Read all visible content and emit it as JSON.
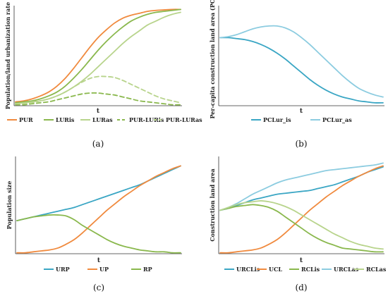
{
  "colors": {
    "orange": "#f08a3e",
    "green": "#8ab84d",
    "lightgreen": "#b8d48c",
    "blue": "#3aa6c4",
    "lightblue": "#8ccce0"
  },
  "chart_data": [
    {
      "type": "line",
      "panel_caption": "(a)",
      "xlabel": "t",
      "ylabel": "Population/land urbanization rate",
      "x": [
        0,
        1,
        2,
        3,
        4,
        5,
        6,
        7,
        8,
        9,
        10,
        11,
        12,
        13,
        14,
        15,
        16,
        17,
        18,
        19,
        20
      ],
      "ylim": [
        0,
        1
      ],
      "legend_position": "bottom",
      "series": [
        {
          "name": "PUR",
          "color": "#f08a3e",
          "dash": false,
          "values": [
            0.04,
            0.05,
            0.07,
            0.1,
            0.14,
            0.2,
            0.28,
            0.38,
            0.49,
            0.6,
            0.7,
            0.78,
            0.85,
            0.9,
            0.93,
            0.95,
            0.97,
            0.98,
            0.985,
            0.99,
            0.99
          ]
        },
        {
          "name": "LURis",
          "color": "#8ab84d",
          "dash": false,
          "values": [
            0.03,
            0.04,
            0.05,
            0.07,
            0.1,
            0.14,
            0.2,
            0.28,
            0.37,
            0.47,
            0.57,
            0.66,
            0.74,
            0.81,
            0.87,
            0.91,
            0.94,
            0.96,
            0.97,
            0.98,
            0.99
          ]
        },
        {
          "name": "LURas",
          "color": "#b8d48c",
          "dash": false,
          "values": [
            0.02,
            0.03,
            0.04,
            0.05,
            0.07,
            0.1,
            0.14,
            0.19,
            0.25,
            0.32,
            0.4,
            0.48,
            0.56,
            0.64,
            0.71,
            0.77,
            0.83,
            0.87,
            0.91,
            0.94,
            0.96
          ]
        },
        {
          "name": "PUR-LURis",
          "color": "#8ab84d",
          "dash": true,
          "values": [
            0.01,
            0.01,
            0.02,
            0.03,
            0.04,
            0.06,
            0.08,
            0.1,
            0.12,
            0.13,
            0.13,
            0.12,
            0.11,
            0.09,
            0.07,
            0.05,
            0.04,
            0.03,
            0.02,
            0.01,
            0.01
          ]
        },
        {
          "name": "PUR-LURas",
          "color": "#b8d48c",
          "dash": true,
          "values": [
            0.02,
            0.02,
            0.03,
            0.05,
            0.07,
            0.1,
            0.14,
            0.19,
            0.24,
            0.28,
            0.3,
            0.3,
            0.29,
            0.26,
            0.22,
            0.18,
            0.14,
            0.1,
            0.07,
            0.05,
            0.03
          ]
        }
      ]
    },
    {
      "type": "line",
      "panel_caption": "(b)",
      "xlabel": "t",
      "ylabel": "Per-capita construction land area (PCL)",
      "x": [
        0,
        1,
        2,
        3,
        4,
        5,
        6,
        7,
        8,
        9,
        10,
        11,
        12,
        13,
        14,
        15,
        16,
        17,
        18,
        19,
        20
      ],
      "ylim": [
        0,
        1
      ],
      "legend_position": "bottom",
      "series": [
        {
          "name": "PCLur_is",
          "color": "#3aa6c4",
          "dash": false,
          "values": [
            0.7,
            0.7,
            0.69,
            0.68,
            0.66,
            0.63,
            0.59,
            0.54,
            0.48,
            0.41,
            0.34,
            0.27,
            0.21,
            0.16,
            0.12,
            0.09,
            0.07,
            0.05,
            0.04,
            0.03,
            0.03
          ]
        },
        {
          "name": "PCLur_as",
          "color": "#8ccce0",
          "dash": false,
          "values": [
            0.7,
            0.71,
            0.73,
            0.76,
            0.79,
            0.81,
            0.82,
            0.82,
            0.8,
            0.76,
            0.7,
            0.63,
            0.55,
            0.47,
            0.39,
            0.31,
            0.24,
            0.18,
            0.14,
            0.11,
            0.09
          ]
        }
      ]
    },
    {
      "type": "line",
      "panel_caption": "(c)",
      "xlabel": "t",
      "ylabel": "Population size",
      "x": [
        0,
        1,
        2,
        3,
        4,
        5,
        6,
        7,
        8,
        9,
        10,
        11,
        12,
        13,
        14,
        15,
        16,
        17,
        18,
        19,
        20
      ],
      "ylim": [
        0,
        1
      ],
      "legend_position": "bottom",
      "series": [
        {
          "name": "URP",
          "color": "#3aa6c4",
          "dash": false,
          "values": [
            0.35,
            0.37,
            0.39,
            0.41,
            0.43,
            0.45,
            0.47,
            0.49,
            0.52,
            0.55,
            0.58,
            0.61,
            0.64,
            0.67,
            0.7,
            0.73,
            0.77,
            0.81,
            0.85,
            0.89,
            0.93
          ]
        },
        {
          "name": "UP",
          "color": "#f08a3e",
          "dash": false,
          "values": [
            0.01,
            0.01,
            0.02,
            0.03,
            0.04,
            0.06,
            0.1,
            0.15,
            0.22,
            0.3,
            0.38,
            0.46,
            0.53,
            0.6,
            0.66,
            0.72,
            0.77,
            0.82,
            0.86,
            0.9,
            0.93
          ]
        },
        {
          "name": "RP",
          "color": "#8ab84d",
          "dash": false,
          "values": [
            0.35,
            0.37,
            0.39,
            0.4,
            0.41,
            0.41,
            0.4,
            0.36,
            0.3,
            0.25,
            0.2,
            0.15,
            0.11,
            0.08,
            0.06,
            0.04,
            0.03,
            0.02,
            0.02,
            0.01,
            0.01
          ]
        }
      ]
    },
    {
      "type": "line",
      "panel_caption": "(d)",
      "xlabel": "t",
      "ylabel": "Construction land area",
      "x": [
        0,
        1,
        2,
        3,
        4,
        5,
        6,
        7,
        8,
        9,
        10,
        11,
        12,
        13,
        14,
        15,
        16,
        17,
        18,
        19,
        20
      ],
      "ylim": [
        0,
        1
      ],
      "legend_position": "bottom",
      "series": [
        {
          "name": "URCLis",
          "color": "#3aa6c4",
          "dash": false,
          "values": [
            0.46,
            0.48,
            0.51,
            0.54,
            0.57,
            0.59,
            0.61,
            0.63,
            0.64,
            0.65,
            0.66,
            0.67,
            0.69,
            0.71,
            0.73,
            0.76,
            0.79,
            0.82,
            0.86,
            0.89,
            0.92
          ]
        },
        {
          "name": "UCL",
          "color": "#f08a3e",
          "dash": false,
          "values": [
            0.01,
            0.01,
            0.02,
            0.03,
            0.04,
            0.06,
            0.1,
            0.15,
            0.22,
            0.3,
            0.38,
            0.46,
            0.53,
            0.6,
            0.66,
            0.72,
            0.77,
            0.82,
            0.86,
            0.9,
            0.93
          ]
        },
        {
          "name": "RCLis",
          "color": "#8ab84d",
          "dash": false,
          "values": [
            0.46,
            0.48,
            0.5,
            0.51,
            0.52,
            0.51,
            0.49,
            0.45,
            0.39,
            0.33,
            0.27,
            0.21,
            0.16,
            0.12,
            0.09,
            0.06,
            0.05,
            0.04,
            0.03,
            0.02,
            0.02
          ]
        },
        {
          "name": "URCLas",
          "color": "#8ccce0",
          "dash": false,
          "values": [
            0.46,
            0.49,
            0.53,
            0.58,
            0.63,
            0.67,
            0.71,
            0.75,
            0.78,
            0.8,
            0.82,
            0.84,
            0.86,
            0.88,
            0.89,
            0.9,
            0.91,
            0.92,
            0.93,
            0.94,
            0.96
          ]
        },
        {
          "name": "RCLas",
          "color": "#b8d48c",
          "dash": false,
          "values": [
            0.46,
            0.49,
            0.52,
            0.54,
            0.55,
            0.56,
            0.55,
            0.53,
            0.5,
            0.46,
            0.41,
            0.36,
            0.31,
            0.26,
            0.21,
            0.17,
            0.13,
            0.1,
            0.08,
            0.06,
            0.05
          ]
        }
      ]
    }
  ]
}
